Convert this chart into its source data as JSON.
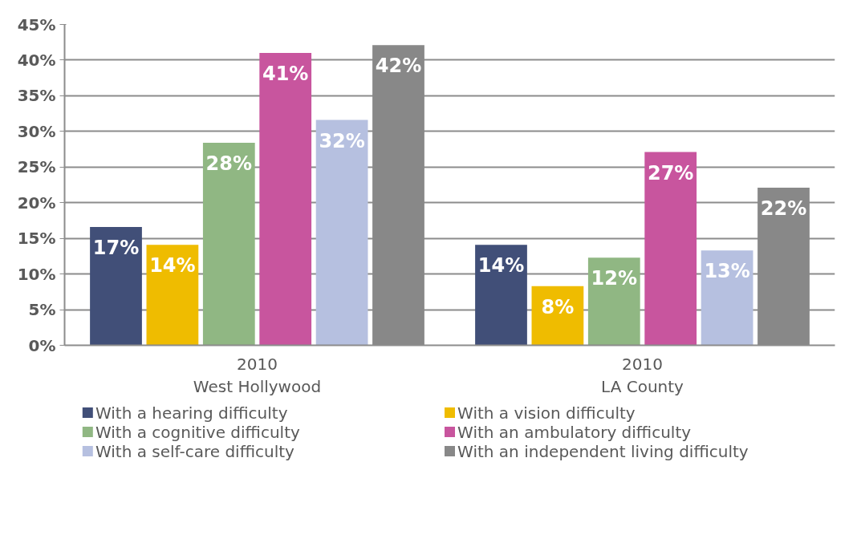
{
  "chart_data": {
    "type": "bar",
    "categories": [
      "2010\nWest Hollywood",
      "2010\nLA County"
    ],
    "series": [
      {
        "name": "With a hearing difficulty",
        "color": "#414f78",
        "values": [
          16.6,
          14.1
        ],
        "value_labels": [
          "17%",
          "14%"
        ]
      },
      {
        "name": "With a vision difficulty",
        "color": "#efbc00",
        "values": [
          14.1,
          8.3
        ],
        "value_labels": [
          "14%",
          "8%"
        ]
      },
      {
        "name": "With a cognitive difficulty",
        "color": "#90b783",
        "values": [
          28.4,
          12.3
        ],
        "value_labels": [
          "28%",
          "12%"
        ]
      },
      {
        "name": "With an ambulatory difficulty",
        "color": "#c8559e",
        "values": [
          41,
          27.1
        ],
        "value_labels": [
          "41%",
          "27%"
        ]
      },
      {
        "name": "With a self-care difficulty",
        "color": "#b6c0e0",
        "values": [
          31.6,
          13.3
        ],
        "value_labels": [
          "32%",
          "13%"
        ]
      },
      {
        "name": "With an independent living difficulty",
        "color": "#888888",
        "values": [
          42.1,
          22.1
        ],
        "value_labels": [
          "42%",
          "22%"
        ]
      }
    ],
    "ylim": [
      0,
      45
    ],
    "yticks": [
      {
        "value": 0,
        "label": "0%"
      },
      {
        "value": 5,
        "label": "5%"
      },
      {
        "value": 10,
        "label": "10%"
      },
      {
        "value": 15,
        "label": "15%"
      },
      {
        "value": 20,
        "label": "20%"
      },
      {
        "value": 25,
        "label": "25%"
      },
      {
        "value": 30,
        "label": "30%"
      },
      {
        "value": 35,
        "label": "35%"
      },
      {
        "value": 40,
        "label": "40%"
      },
      {
        "value": 45,
        "label": "45%"
      }
    ],
    "grid": "y",
    "legend": "bottom"
  }
}
